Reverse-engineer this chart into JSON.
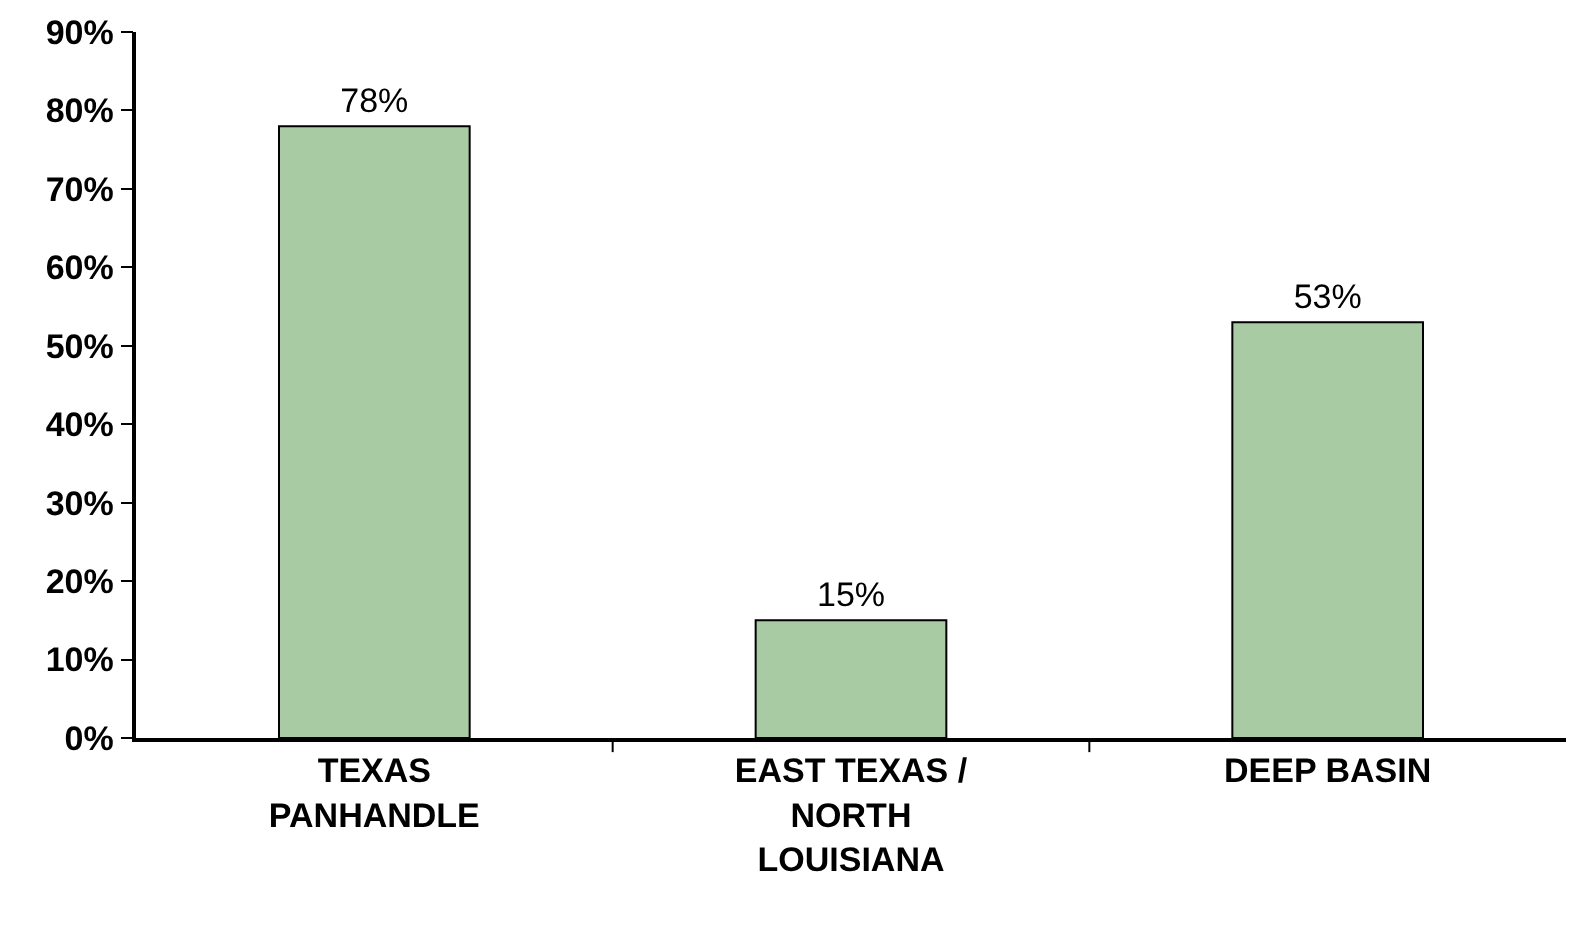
{
  "chart_data": {
    "type": "bar",
    "categories": [
      "TEXAS PANHANDLE",
      "EAST TEXAS / NORTH LOUISIANA",
      "DEEP BASIN"
    ],
    "values": [
      78,
      15,
      53
    ],
    "color": "#a8cba4",
    "value_labels": [
      "78%",
      "15%",
      "53%"
    ],
    "ylim": [
      0,
      90
    ],
    "yticks": [
      {
        "value": 0,
        "label": "0%"
      },
      {
        "value": 10,
        "label": "10%"
      },
      {
        "value": 20,
        "label": "20%"
      },
      {
        "value": 30,
        "label": "30%"
      },
      {
        "value": 40,
        "label": "40%"
      },
      {
        "value": 50,
        "label": "50%"
      },
      {
        "value": 60,
        "label": "60%"
      },
      {
        "value": 70,
        "label": "70%"
      },
      {
        "value": 80,
        "label": "80%"
      },
      {
        "value": 90,
        "label": "90%"
      }
    ],
    "grid": false,
    "legend": false
  }
}
